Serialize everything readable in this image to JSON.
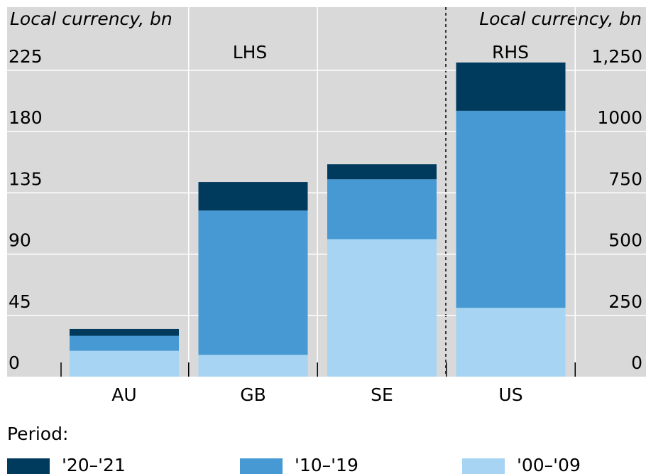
{
  "chart_data": {
    "type": "stacked_bar",
    "ylabel": "Local currency, bn",
    "y2label": "Local currency, bn",
    "annotations": [
      "LHS",
      "RHS"
    ],
    "categories": [
      "AU",
      "GB",
      "SE",
      "US"
    ],
    "legend_title": "Period:",
    "series": [
      {
        "name": "'20–'21",
        "color": "#003a5d",
        "values": [
          5,
          21,
          11,
          null
        ]
      },
      {
        "name": "'10–'19",
        "color": "#4699d2",
        "values": [
          11,
          106,
          44,
          null
        ]
      },
      {
        "name": "'00–'09",
        "color": "#a6d4f2",
        "values": [
          19,
          16,
          101,
          null
        ]
      },
      {
        "color": "#003a5d",
        "axis": "y2",
        "values": [
          null,
          null,
          null,
          197
        ]
      },
      {
        "color": "#4699d2",
        "axis": "y2",
        "values": [
          null,
          null,
          null,
          804
        ]
      },
      {
        "color": "#a6d4f2",
        "axis": "y2",
        "values": [
          null,
          null,
          null,
          281
        ]
      }
    ],
    "ylim": [
      0,
      225
    ],
    "yticks": [
      0,
      45,
      90,
      135,
      180,
      225
    ],
    "y2lim": [
      0,
      1250
    ],
    "y2ticks": [
      0,
      250,
      500,
      750,
      1000,
      {
        "value": 1250,
        "label": "1,250"
      }
    ],
    "grid": true
  }
}
